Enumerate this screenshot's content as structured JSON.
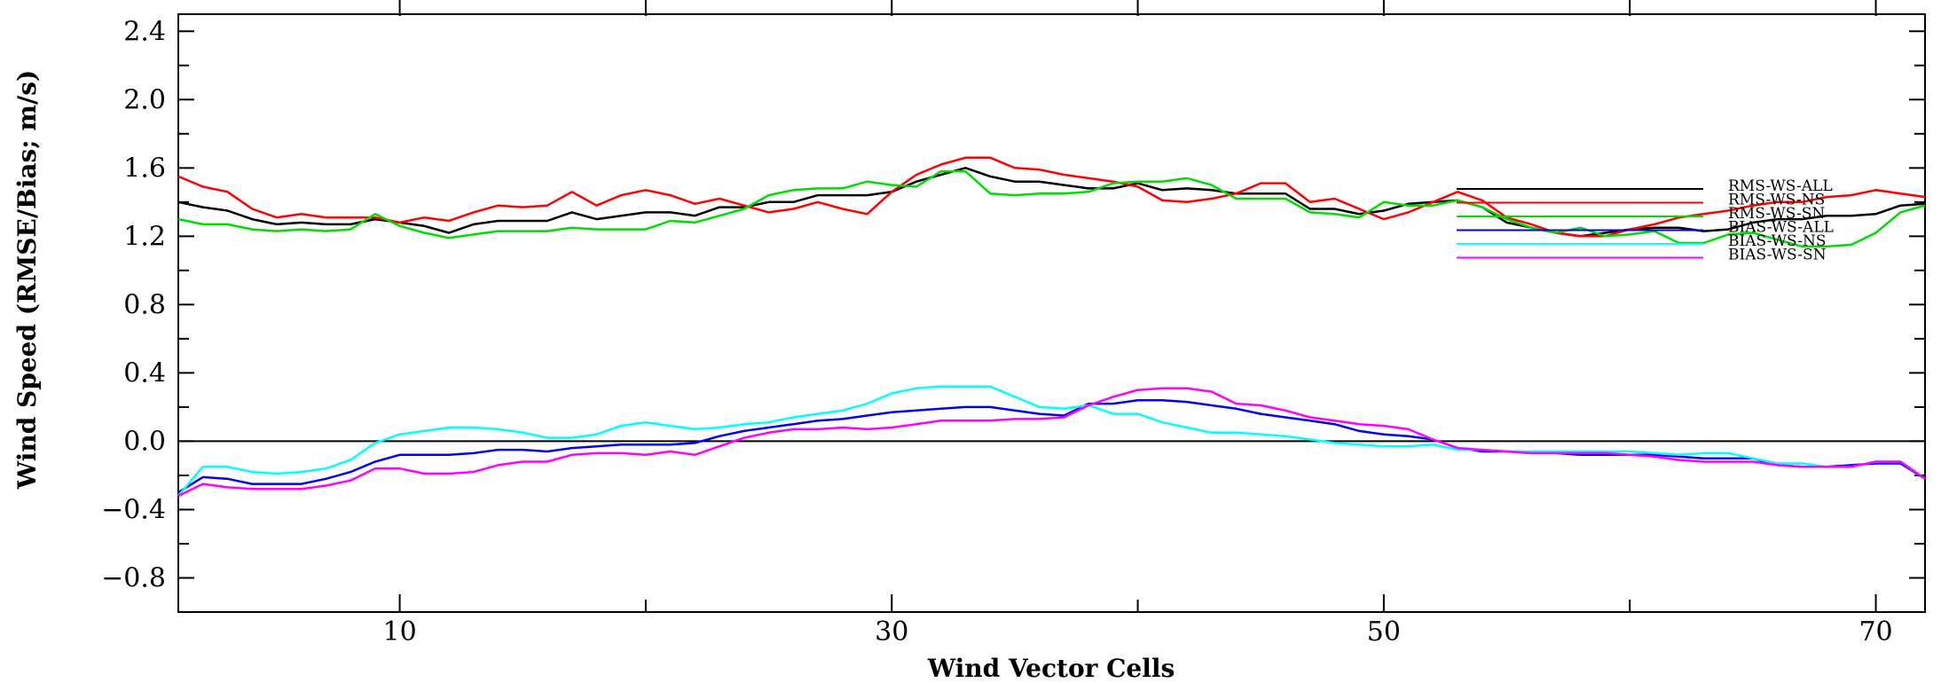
{
  "chart_data": {
    "type": "line",
    "xlabel": "Wind Vector Cells",
    "ylabel": "Wind Speed (RMSE/Bias; m/s)",
    "xlim": [
      1,
      72
    ],
    "ylim": [
      -1.0,
      2.5
    ],
    "xticks": [
      10,
      30,
      50,
      70
    ],
    "xtick_labels": [
      "10",
      "30",
      "50",
      "70"
    ],
    "yticks": [
      2.4,
      2.0,
      1.6,
      1.2,
      0.8,
      0.4,
      0.0,
      -0.4,
      -0.8
    ],
    "ytick_labels": [
      "2.4",
      "2.0",
      "1.6",
      "1.2",
      "0.8",
      "0.4",
      "0.0",
      "−0.4",
      "−0.8"
    ],
    "zero_line": true,
    "grid": false,
    "legend_position": "right",
    "x": [
      1,
      2,
      3,
      4,
      5,
      6,
      7,
      8,
      9,
      10,
      11,
      12,
      13,
      14,
      15,
      16,
      17,
      18,
      19,
      20,
      21,
      22,
      23,
      24,
      25,
      26,
      27,
      28,
      29,
      30,
      31,
      32,
      33,
      34,
      35,
      36,
      37,
      38,
      39,
      40,
      41,
      42,
      43,
      44,
      45,
      46,
      47,
      48,
      49,
      50,
      51,
      52,
      53,
      54,
      55,
      56,
      57,
      58,
      59,
      60,
      61,
      62,
      63,
      64,
      65,
      66,
      67,
      68,
      69,
      70,
      71,
      72
    ],
    "series": [
      {
        "name": "RMS-WS-ALL",
        "color": "#000000",
        "values": [
          1.4,
          1.37,
          1.35,
          1.3,
          1.27,
          1.28,
          1.27,
          1.27,
          1.3,
          1.28,
          1.26,
          1.22,
          1.27,
          1.29,
          1.29,
          1.29,
          1.34,
          1.3,
          1.32,
          1.34,
          1.34,
          1.32,
          1.37,
          1.37,
          1.4,
          1.4,
          1.44,
          1.44,
          1.44,
          1.46,
          1.52,
          1.56,
          1.6,
          1.55,
          1.52,
          1.52,
          1.5,
          1.48,
          1.48,
          1.51,
          1.47,
          1.48,
          1.47,
          1.45,
          1.45,
          1.45,
          1.36,
          1.36,
          1.33,
          1.35,
          1.39,
          1.4,
          1.41,
          1.37,
          1.28,
          1.25,
          1.22,
          1.2,
          1.22,
          1.24,
          1.25,
          1.25,
          1.23,
          1.24,
          1.28,
          1.3,
          1.3,
          1.32,
          1.32,
          1.33,
          1.38,
          1.39
        ]
      },
      {
        "name": "RMS-WS-NS",
        "color": "#ff0000",
        "values": [
          1.55,
          1.49,
          1.46,
          1.36,
          1.31,
          1.33,
          1.31,
          1.31,
          1.31,
          1.28,
          1.31,
          1.29,
          1.34,
          1.38,
          1.37,
          1.38,
          1.46,
          1.38,
          1.44,
          1.47,
          1.44,
          1.39,
          1.42,
          1.38,
          1.34,
          1.36,
          1.4,
          1.36,
          1.33,
          1.46,
          1.56,
          1.62,
          1.66,
          1.66,
          1.6,
          1.59,
          1.56,
          1.54,
          1.52,
          1.49,
          1.41,
          1.4,
          1.42,
          1.45,
          1.51,
          1.51,
          1.4,
          1.42,
          1.36,
          1.3,
          1.34,
          1.4,
          1.46,
          1.41,
          1.31,
          1.27,
          1.22,
          1.2,
          1.2,
          1.24,
          1.27,
          1.31,
          1.33,
          1.35,
          1.38,
          1.4,
          1.4,
          1.43,
          1.44,
          1.47,
          1.45,
          1.43
        ]
      },
      {
        "name": "RMS-WS-SN",
        "color": "#00dd00",
        "values": [
          1.3,
          1.27,
          1.27,
          1.24,
          1.23,
          1.24,
          1.23,
          1.24,
          1.33,
          1.26,
          1.22,
          1.19,
          1.21,
          1.23,
          1.23,
          1.23,
          1.25,
          1.24,
          1.24,
          1.24,
          1.29,
          1.28,
          1.32,
          1.36,
          1.44,
          1.47,
          1.48,
          1.48,
          1.52,
          1.5,
          1.49,
          1.58,
          1.58,
          1.45,
          1.44,
          1.45,
          1.45,
          1.46,
          1.51,
          1.52,
          1.52,
          1.54,
          1.5,
          1.42,
          1.42,
          1.42,
          1.34,
          1.33,
          1.31,
          1.4,
          1.38,
          1.38,
          1.41,
          1.37,
          1.3,
          1.25,
          1.22,
          1.25,
          1.2,
          1.21,
          1.23,
          1.16,
          1.16,
          1.21,
          1.22,
          1.18,
          1.14,
          1.14,
          1.15,
          1.22,
          1.34,
          1.38
        ]
      },
      {
        "name": "BIAS-WS-ALL",
        "color": "#0000ee",
        "values": [
          -0.3,
          -0.21,
          -0.22,
          -0.25,
          -0.25,
          -0.25,
          -0.22,
          -0.18,
          -0.12,
          -0.08,
          -0.08,
          -0.08,
          -0.07,
          -0.05,
          -0.05,
          -0.06,
          -0.04,
          -0.03,
          -0.02,
          -0.02,
          -0.02,
          -0.01,
          0.03,
          0.06,
          0.08,
          0.1,
          0.12,
          0.13,
          0.15,
          0.17,
          0.18,
          0.19,
          0.2,
          0.2,
          0.18,
          0.16,
          0.15,
          0.22,
          0.22,
          0.24,
          0.24,
          0.23,
          0.21,
          0.19,
          0.16,
          0.14,
          0.12,
          0.1,
          0.06,
          0.04,
          0.03,
          0.01,
          -0.04,
          -0.06,
          -0.06,
          -0.07,
          -0.07,
          -0.08,
          -0.08,
          -0.08,
          -0.08,
          -0.09,
          -0.1,
          -0.1,
          -0.1,
          -0.14,
          -0.15,
          -0.15,
          -0.14,
          -0.13,
          -0.13,
          -0.22
        ]
      },
      {
        "name": "BIAS-WS-NS",
        "color": "#00ffff",
        "values": [
          -0.32,
          -0.15,
          -0.15,
          -0.18,
          -0.19,
          -0.18,
          -0.16,
          -0.11,
          -0.01,
          0.04,
          0.06,
          0.08,
          0.08,
          0.07,
          0.05,
          0.02,
          0.02,
          0.04,
          0.09,
          0.11,
          0.09,
          0.07,
          0.08,
          0.1,
          0.11,
          0.14,
          0.16,
          0.18,
          0.22,
          0.28,
          0.31,
          0.32,
          0.32,
          0.32,
          0.26,
          0.2,
          0.19,
          0.21,
          0.16,
          0.16,
          0.11,
          0.08,
          0.05,
          0.05,
          0.04,
          0.03,
          0.01,
          -0.01,
          -0.02,
          -0.03,
          -0.03,
          -0.02,
          -0.05,
          -0.05,
          -0.06,
          -0.06,
          -0.06,
          -0.06,
          -0.06,
          -0.06,
          -0.07,
          -0.08,
          -0.07,
          -0.07,
          -0.1,
          -0.13,
          -0.13,
          -0.15,
          -0.15,
          -0.12,
          -0.12,
          -0.22
        ]
      },
      {
        "name": "BIAS-WS-SN",
        "color": "#ff00ff",
        "values": [
          -0.32,
          -0.25,
          -0.27,
          -0.28,
          -0.28,
          -0.28,
          -0.26,
          -0.23,
          -0.16,
          -0.16,
          -0.19,
          -0.19,
          -0.18,
          -0.14,
          -0.12,
          -0.12,
          -0.08,
          -0.07,
          -0.07,
          -0.08,
          -0.06,
          -0.08,
          -0.03,
          0.02,
          0.05,
          0.07,
          0.07,
          0.08,
          0.07,
          0.08,
          0.1,
          0.12,
          0.12,
          0.12,
          0.13,
          0.13,
          0.14,
          0.21,
          0.26,
          0.3,
          0.31,
          0.31,
          0.29,
          0.22,
          0.21,
          0.18,
          0.14,
          0.12,
          0.1,
          0.09,
          0.07,
          0.01,
          -0.04,
          -0.05,
          -0.06,
          -0.07,
          -0.07,
          -0.07,
          -0.07,
          -0.08,
          -0.09,
          -0.11,
          -0.12,
          -0.12,
          -0.12,
          -0.14,
          -0.15,
          -0.15,
          -0.15,
          -0.12,
          -0.12,
          -0.22
        ]
      }
    ]
  }
}
